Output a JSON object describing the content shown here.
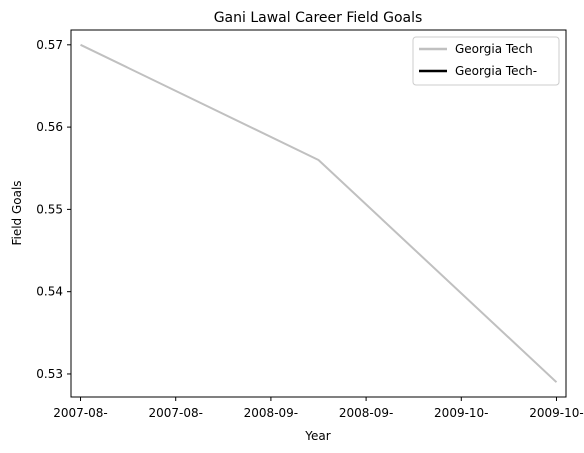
{
  "chart_data": {
    "type": "line",
    "title": "Gani Lawal Career Field Goals",
    "xlabel": "Year",
    "ylabel": "Field Goals",
    "x_tick_labels": [
      "2007-08-",
      "2007-08-",
      "2008-09-",
      "2008-09-",
      "2009-10-",
      "2009-10-"
    ],
    "y_ticks": [
      0.53,
      0.54,
      0.55,
      0.56,
      0.57
    ],
    "y_tick_labels": [
      "0.53",
      "0.54",
      "0.55",
      "0.56",
      "0.57"
    ],
    "xlim": [
      -0.1,
      5.1
    ],
    "ylim": [
      0.5272,
      0.5718
    ],
    "grid": false,
    "legend_position": "top-right",
    "series": [
      {
        "name": "Georgia Tech",
        "color": "#c0c0c0",
        "x": [
          0,
          2.5,
          5
        ],
        "values": [
          0.57,
          0.556,
          0.529
        ]
      },
      {
        "name": "Georgia Tech-",
        "color": "#000000",
        "x": [],
        "values": []
      }
    ]
  }
}
